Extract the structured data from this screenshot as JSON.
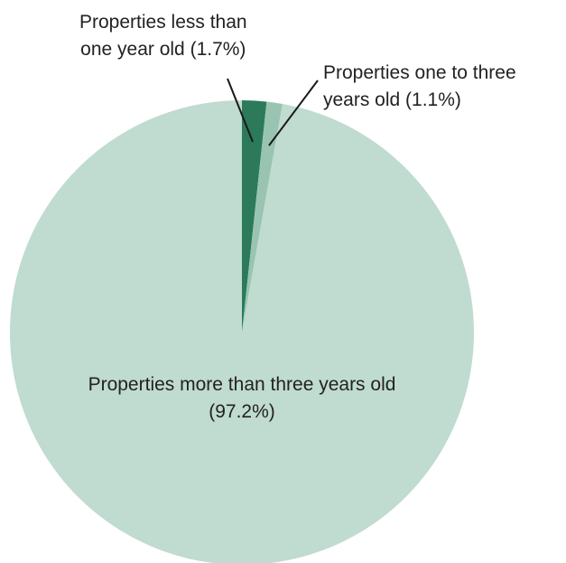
{
  "chart_data": {
    "type": "pie",
    "slices": [
      {
        "label": "Properties less than one year old",
        "label_lines": [
          "Properties less than",
          "one year old (1.7%)"
        ],
        "value": 1.7,
        "color": "#2c7a5a"
      },
      {
        "label": "Properties one to three years old",
        "label_lines": [
          "Properties one to three",
          "years old (1.1%)"
        ],
        "value": 1.1,
        "color": "#98c4b1"
      },
      {
        "label": "Properties more than three years old",
        "label_lines": [
          "Properties more than three years old",
          "(97.2%)"
        ],
        "value": 97.2,
        "color": "#c0dbd0"
      }
    ],
    "start_angle": "12 o'clock",
    "direction": "clockwise",
    "legend": "none"
  }
}
